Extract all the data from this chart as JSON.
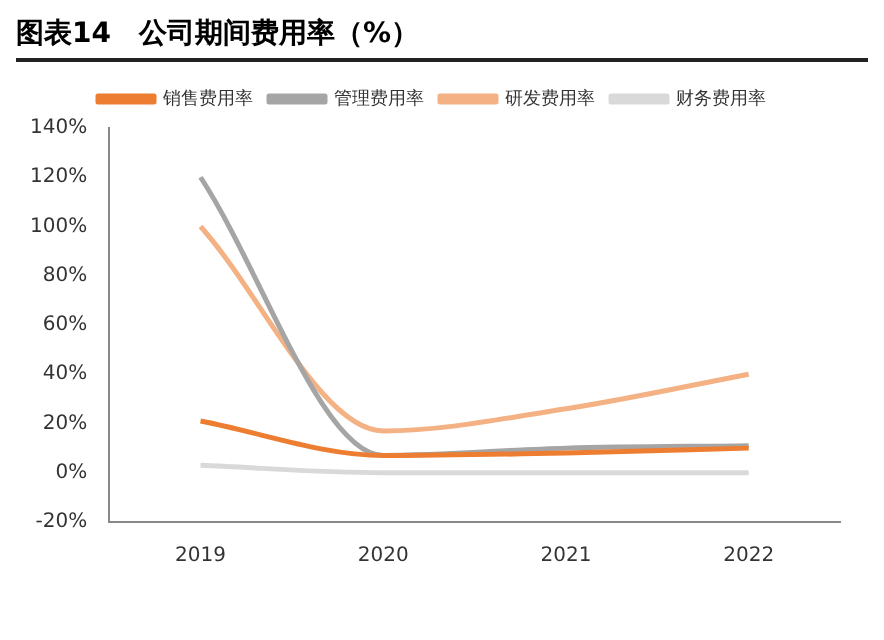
{
  "chart_data": {
    "type": "line",
    "title": "图表14　公司期间费用率（%）",
    "categories": [
      "2019",
      "2020",
      "2021",
      "2022"
    ],
    "series": [
      {
        "name": "销售费用率",
        "color": "#ed7d31",
        "values": [
          21,
          7,
          8,
          10
        ]
      },
      {
        "name": "管理费用率",
        "color": "#a5a5a5",
        "values": [
          120,
          7,
          10,
          11
        ]
      },
      {
        "name": "研发费用率",
        "color": "#f4b183",
        "values": [
          100,
          17,
          26,
          40
        ]
      },
      {
        "name": "财务费用率",
        "color": "#d9d9d9",
        "values": [
          3,
          0,
          0,
          0
        ]
      }
    ],
    "ylim": [
      -20,
      140
    ],
    "yticks": [
      {
        "value": -20,
        "label": "-20%"
      },
      {
        "value": 0,
        "label": "0%"
      },
      {
        "value": 20,
        "label": "20%"
      },
      {
        "value": 40,
        "label": "40%"
      },
      {
        "value": 60,
        "label": "60%"
      },
      {
        "value": 80,
        "label": "80%"
      },
      {
        "value": 100,
        "label": "100%"
      },
      {
        "value": 120,
        "label": "120%"
      },
      {
        "value": 140,
        "label": "140%"
      }
    ],
    "grid": false,
    "legend": "top",
    "marker": "none",
    "line_style": "solid"
  }
}
